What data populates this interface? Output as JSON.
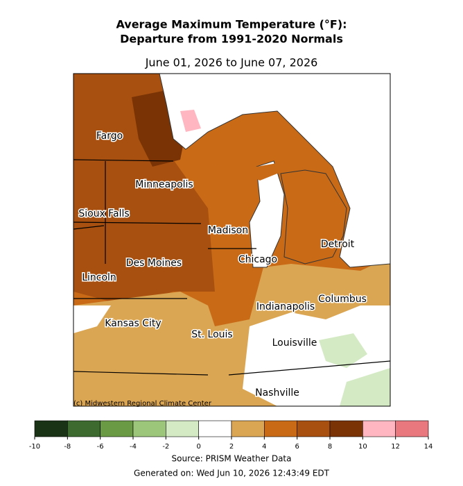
{
  "title": [
    "Average Maximum Temperature (°F):",
    "Departure from 1991-2020 Normals"
  ],
  "subtitle": "June 01, 2026 to June 07, 2026",
  "map": {
    "cities": [
      "Fargo",
      "Minneapolis",
      "Sioux Falls",
      "Madison",
      "Detroit",
      "Chicago",
      "Des Moines",
      "Lincoln",
      "Columbus",
      "Indianapolis",
      "Kansas City",
      "St. Louis",
      "Louisville",
      "Nashville"
    ],
    "credit": "(c) Midwestern Regional Climate Center"
  },
  "colorbar": {
    "ticks": [
      -10,
      -8,
      -6,
      -4,
      -2,
      0,
      2,
      4,
      6,
      8,
      10,
      12,
      14
    ],
    "colors": [
      "#1a3317",
      "#3d6b2f",
      "#6b9a45",
      "#9cc77a",
      "#d4eac4",
      "#ffffff",
      "#dba653",
      "#c96a17",
      "#a8500f",
      "#7a3305",
      "#ffb6c1",
      "#e9787e"
    ]
  },
  "source": "Source: PRISM Weather Data",
  "generated": "Generated on: Wed Jun 10, 2026 12:43:49 EDT"
}
